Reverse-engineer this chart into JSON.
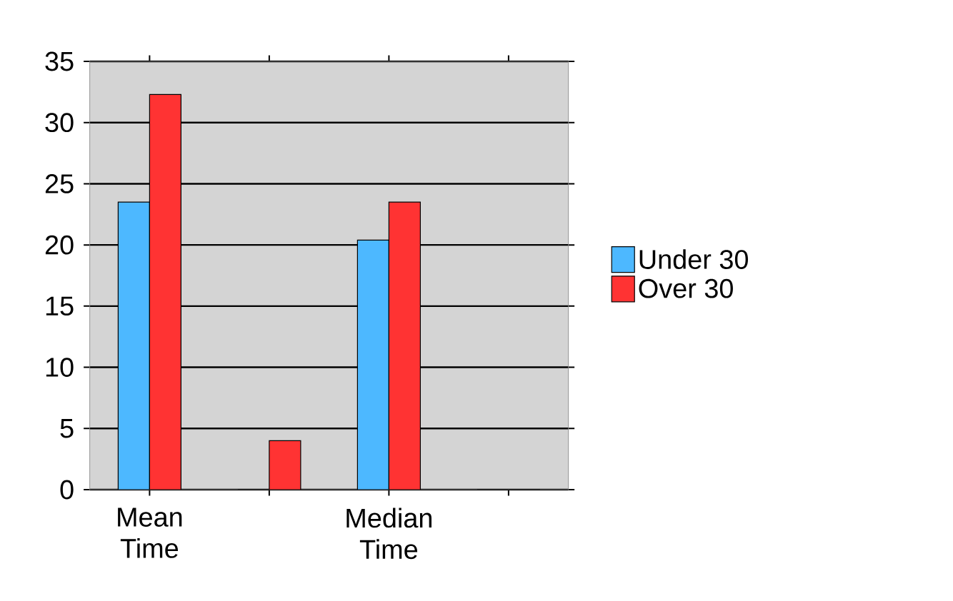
{
  "chart_data": {
    "type": "bar",
    "categories": [
      "Mean Time",
      null,
      "Median Time",
      null
    ],
    "series": [
      {
        "name": "Under 30",
        "color": "#4db8ff",
        "values": [
          23.5,
          0,
          20.4,
          0
        ]
      },
      {
        "name": "Over 30",
        "color": "#ff3333",
        "values": [
          32.3,
          4,
          23.5,
          0
        ]
      }
    ],
    "ylim": [
      0,
      35
    ],
    "yticks": [
      0,
      5,
      10,
      15,
      20,
      25,
      30,
      35
    ],
    "grid": "y",
    "legend": "right"
  }
}
